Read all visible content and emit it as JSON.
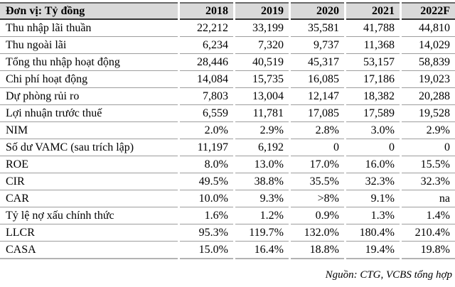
{
  "table": {
    "unit_header": "Đơn vị: Tỷ đồng",
    "year_headers": [
      "2018",
      "2019",
      "2020",
      "2021",
      "2022F"
    ],
    "rows": [
      {
        "label": "Thu nhập lãi thuần",
        "values": [
          "22,212",
          "33,199",
          "35,581",
          "41,788",
          "44,810"
        ]
      },
      {
        "label": "Thu ngoài lãi",
        "values": [
          "6,234",
          "7,320",
          "9,737",
          "11,368",
          "14,029"
        ]
      },
      {
        "label": "Tổng thu nhập hoạt động",
        "values": [
          "28,446",
          "40,519",
          "45,317",
          "53,157",
          "58,839"
        ]
      },
      {
        "label": "Chi phí hoạt động",
        "values": [
          "14,084",
          "15,735",
          "16,085",
          "17,186",
          "19,023"
        ]
      },
      {
        "label": "Dự phòng rủi ro",
        "values": [
          "7,803",
          "13,004",
          "12,147",
          "18,382",
          "20,288"
        ]
      },
      {
        "label": "Lợi nhuận trước thuế",
        "values": [
          "6,559",
          "11,781",
          "17,085",
          "17,589",
          "19,528"
        ]
      },
      {
        "label": "NIM",
        "values": [
          "2.0%",
          "2.9%",
          "2.8%",
          "3.0%",
          "2.9%"
        ]
      },
      {
        "label": "Số dư VAMC (sau trích lập)",
        "values": [
          "11,197",
          "6,192",
          "0",
          "0",
          "0"
        ]
      },
      {
        "label": "ROE",
        "values": [
          "8.0%",
          "13.0%",
          "17.0%",
          "16.0%",
          "15.5%"
        ]
      },
      {
        "label": "CIR",
        "values": [
          "49.5%",
          "38.8%",
          "35.5%",
          "32.3%",
          "32.3%"
        ]
      },
      {
        "label": "CAR",
        "values": [
          "10.0%",
          "9.3%",
          ">8%",
          "9.1%",
          "na"
        ]
      },
      {
        "label": "Tỷ lệ nợ xấu chính thức",
        "values": [
          "1.6%",
          "1.2%",
          "0.9%",
          "1.3%",
          "1.4%"
        ]
      },
      {
        "label": "LLCR",
        "values": [
          "95.3%",
          "119.7%",
          "132.0%",
          "180.4%",
          "210.4%"
        ]
      },
      {
        "label": "CASA",
        "values": [
          "15.0%",
          "16.4%",
          "18.8%",
          "19.4%",
          "19.8%"
        ]
      }
    ]
  },
  "footer": {
    "source_note": "Nguồn: CTG, VCBS tổng hợp"
  },
  "colors": {
    "header_bg": "#d9d9d9",
    "header_top_border": "#6a6a6a",
    "header_bottom_border": "#333333",
    "row_line": "#9d9d9d",
    "bottom_line": "#b3b3b3",
    "text": "#000000",
    "background": "#ffffff"
  }
}
